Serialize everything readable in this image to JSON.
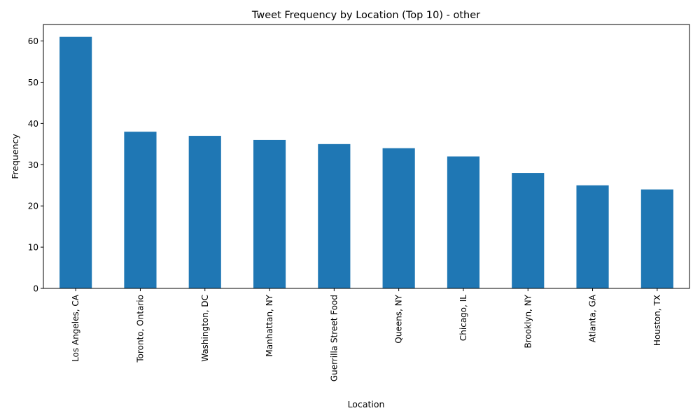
{
  "chart_data": {
    "type": "bar",
    "title": "Tweet Frequency by Location (Top 10) - other",
    "xlabel": "Location",
    "ylabel": "Frequency",
    "categories": [
      "Los Angeles, CA",
      "Toronto, Ontario",
      "Washington, DC",
      "Manhattan, NY",
      "Guerrilla Street Food",
      "Queens, NY",
      "Chicago, IL",
      "Brooklyn, NY",
      "Atlanta, GA",
      "Houston, TX"
    ],
    "values": [
      61,
      38,
      37,
      36,
      35,
      34,
      32,
      28,
      25,
      24
    ],
    "ylim": [
      0,
      64
    ],
    "yticks": [
      0,
      10,
      20,
      30,
      40,
      50,
      60
    ],
    "grid": false,
    "legend": "none",
    "bar_color": "#1f77b4"
  }
}
